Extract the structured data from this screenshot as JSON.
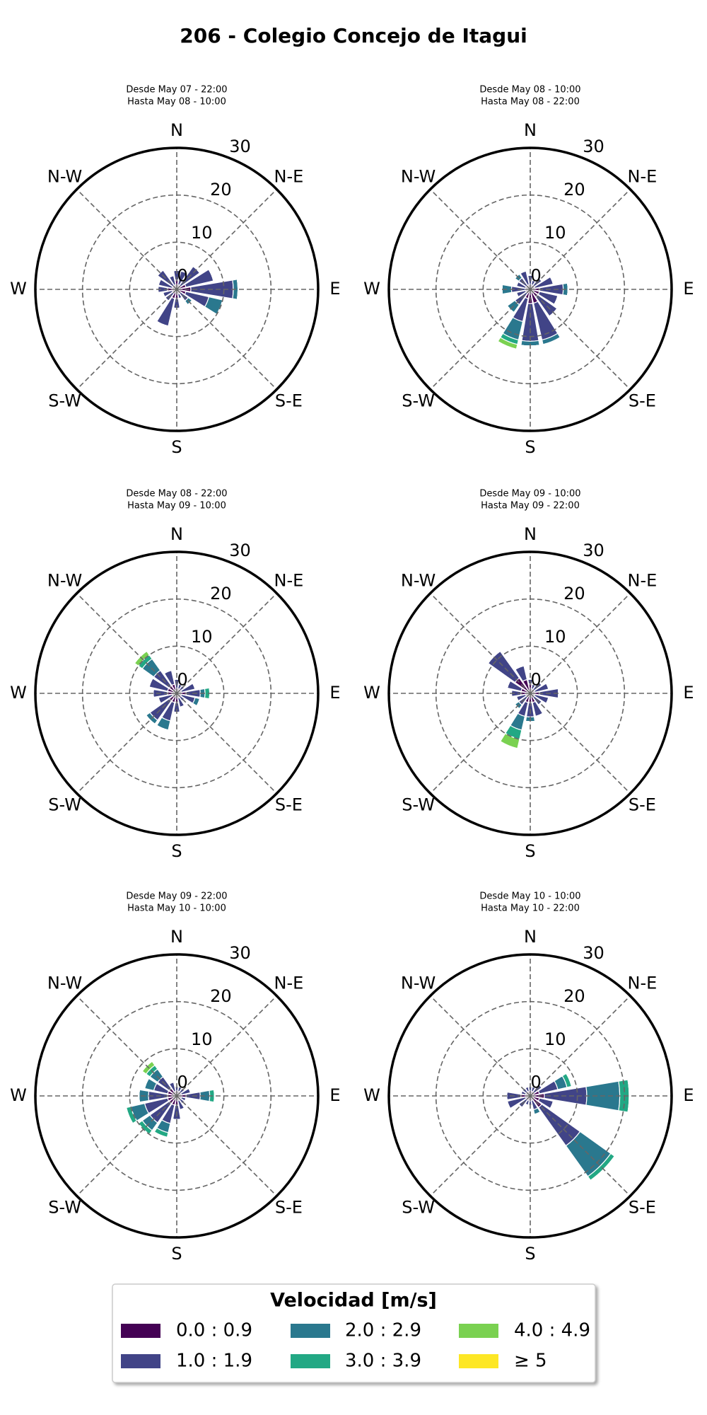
{
  "title": "206 - Colegio Concejo de Itagui",
  "legend": {
    "title": "Velocidad [m/s]",
    "items": [
      {
        "name": "0.0 : 0.9",
        "color": "#440154"
      },
      {
        "name": "1.0 : 1.9",
        "color": "#414487"
      },
      {
        "name": "2.0 : 2.9",
        "color": "#2a788e"
      },
      {
        "name": "3.0 : 3.9",
        "color": "#22a884"
      },
      {
        "name": "4.0 : 4.9",
        "color": "#7ad151"
      },
      {
        "name": "≥  5",
        "color": "#fde725"
      }
    ]
  },
  "chart_data": [
    {
      "type": "windrose",
      "title": [
        "Desde May 07 - 22:00",
        "Hasta May 08 - 10:00"
      ],
      "x": [
        0,
        22.5,
        45,
        67.5,
        90,
        112.5,
        135,
        157.5,
        180,
        202.5,
        225,
        247.5,
        270,
        292.5,
        315,
        337.5
      ],
      "xticks": [
        {
          "value": 0,
          "label": "N"
        },
        {
          "value": 45,
          "label": "N-E"
        },
        {
          "value": 90,
          "label": "E"
        },
        {
          "value": 135,
          "label": "S-E"
        },
        {
          "value": 180,
          "label": "S"
        },
        {
          "value": 225,
          "label": "S-W"
        },
        {
          "value": 270,
          "label": "W"
        },
        {
          "value": 315,
          "label": "N-W"
        }
      ],
      "ylim": [
        0,
        30
      ],
      "yticks": [
        0,
        10,
        20,
        30
      ],
      "series": [
        {
          "values": [
            2,
            1,
            1,
            2,
            3,
            2,
            1,
            1,
            2,
            2,
            1,
            1,
            2,
            1,
            1,
            1
          ]
        },
        {
          "values": [
            2,
            3,
            5,
            6,
            9,
            5,
            2,
            1,
            2,
            6,
            2,
            2,
            2,
            3,
            4,
            2
          ]
        },
        {
          "values": [
            0,
            0,
            0,
            0,
            1,
            3,
            1,
            0,
            0,
            0,
            0,
            0,
            0,
            0,
            0,
            0
          ]
        },
        {
          "values": [
            0,
            0,
            0,
            0,
            0,
            0,
            0,
            0,
            0,
            0,
            0,
            0,
            0,
            0,
            0,
            0
          ]
        },
        {
          "values": [
            0,
            0,
            0,
            0,
            0,
            0,
            0,
            0,
            0,
            0,
            0,
            0,
            0,
            0,
            0,
            0
          ]
        },
        {
          "values": [
            0,
            0,
            0,
            0,
            0,
            0,
            0,
            0,
            0,
            0,
            0,
            0,
            0,
            0,
            0,
            0
          ]
        }
      ]
    },
    {
      "type": "windrose",
      "title": [
        "Desde May 08 - 10:00",
        "Hasta May 08 - 22:00"
      ],
      "x": [
        0,
        22.5,
        45,
        67.5,
        90,
        112.5,
        135,
        157.5,
        180,
        202.5,
        225,
        247.5,
        270,
        292.5,
        315,
        337.5
      ],
      "xticks": [
        {
          "value": 0,
          "label": "N"
        },
        {
          "value": 45,
          "label": "N-E"
        },
        {
          "value": 90,
          "label": "E"
        },
        {
          "value": 135,
          "label": "S-E"
        },
        {
          "value": 180,
          "label": "S"
        },
        {
          "value": 225,
          "label": "S-W"
        },
        {
          "value": 270,
          "label": "W"
        },
        {
          "value": 315,
          "label": "N-W"
        }
      ],
      "ylim": [
        0,
        30
      ],
      "yticks": [
        0,
        10,
        20,
        30
      ],
      "series": [
        {
          "values": [
            1,
            1,
            1,
            1,
            2,
            2,
            2,
            3,
            3,
            2,
            1,
            1,
            1,
            1,
            1,
            1
          ]
        },
        {
          "values": [
            2,
            1,
            2,
            4,
            5,
            4,
            5,
            8,
            8,
            5,
            3,
            2,
            3,
            2,
            2,
            3
          ]
        },
        {
          "values": [
            0,
            0,
            0,
            0,
            1,
            0,
            0,
            1,
            1,
            4,
            2,
            0,
            2,
            0,
            1,
            0
          ]
        },
        {
          "values": [
            0,
            0,
            0,
            0,
            0,
            0,
            0,
            0,
            0,
            1,
            0,
            0,
            0,
            0,
            0,
            0
          ]
        },
        {
          "values": [
            0,
            0,
            0,
            0,
            0,
            0,
            0,
            0,
            0,
            1,
            0,
            0,
            0,
            0,
            0,
            0
          ]
        },
        {
          "values": [
            0,
            0,
            0,
            0,
            0,
            0,
            0,
            0,
            0,
            0,
            0,
            0,
            0,
            0,
            0,
            0
          ]
        }
      ]
    },
    {
      "type": "windrose",
      "title": [
        "Desde May 08 - 22:00",
        "Hasta May 09 - 10:00"
      ],
      "x": [
        0,
        22.5,
        45,
        67.5,
        90,
        112.5,
        135,
        157.5,
        180,
        202.5,
        225,
        247.5,
        270,
        292.5,
        315,
        337.5
      ],
      "xticks": [
        {
          "value": 0,
          "label": "N"
        },
        {
          "value": 45,
          "label": "N-E"
        },
        {
          "value": 90,
          "label": "E"
        },
        {
          "value": 135,
          "label": "S-E"
        },
        {
          "value": 180,
          "label": "S"
        },
        {
          "value": 225,
          "label": "S-W"
        },
        {
          "value": 270,
          "label": "W"
        },
        {
          "value": 315,
          "label": "N-W"
        }
      ],
      "ylim": [
        0,
        30
      ],
      "yticks": [
        0,
        10,
        20,
        30
      ],
      "series": [
        {
          "values": [
            1,
            1,
            1,
            1,
            2,
            1,
            1,
            1,
            2,
            2,
            2,
            1,
            2,
            2,
            2,
            2
          ]
        },
        {
          "values": [
            2,
            1,
            1,
            3,
            3,
            3,
            1,
            2,
            2,
            4,
            5,
            3,
            3,
            4,
            4,
            3
          ]
        },
        {
          "values": [
            0,
            0,
            0,
            0,
            1,
            1,
            0,
            0,
            0,
            2,
            1,
            0,
            0,
            0,
            3,
            0
          ]
        },
        {
          "values": [
            0,
            0,
            0,
            0,
            1,
            0,
            0,
            0,
            0,
            0,
            0,
            0,
            0,
            0,
            1,
            0
          ]
        },
        {
          "values": [
            0,
            0,
            0,
            0,
            0,
            0,
            0,
            0,
            0,
            0,
            0,
            0,
            0,
            0,
            1,
            0
          ]
        },
        {
          "values": [
            0,
            0,
            0,
            0,
            0,
            0,
            0,
            0,
            0,
            0,
            0,
            0,
            0,
            0,
            0,
            0
          ]
        }
      ]
    },
    {
      "type": "windrose",
      "title": [
        "Desde May 09 - 10:00",
        "Hasta May 09 - 22:00"
      ],
      "x": [
        0,
        22.5,
        45,
        67.5,
        90,
        112.5,
        135,
        157.5,
        180,
        202.5,
        225,
        247.5,
        270,
        292.5,
        315,
        337.5
      ],
      "xticks": [
        {
          "value": 0,
          "label": "N"
        },
        {
          "value": 45,
          "label": "N-E"
        },
        {
          "value": 90,
          "label": "E"
        },
        {
          "value": 135,
          "label": "S-E"
        },
        {
          "value": 180,
          "label": "S"
        },
        {
          "value": 225,
          "label": "S-W"
        },
        {
          "value": 270,
          "label": "W"
        },
        {
          "value": 315,
          "label": "N-W"
        }
      ],
      "ylim": [
        0,
        30
      ],
      "yticks": [
        0,
        10,
        20,
        30
      ],
      "series": [
        {
          "values": [
            2,
            1,
            1,
            1,
            2,
            1,
            1,
            2,
            2,
            2,
            1,
            1,
            2,
            2,
            4,
            3
          ]
        },
        {
          "values": [
            1,
            1,
            2,
            3,
            4,
            3,
            2,
            3,
            3,
            3,
            2,
            2,
            2,
            3,
            7,
            3
          ]
        },
        {
          "values": [
            0,
            0,
            0,
            0,
            0,
            0,
            0,
            0,
            1,
            3,
            1,
            0,
            0,
            0,
            0,
            0
          ]
        },
        {
          "values": [
            0,
            0,
            0,
            0,
            0,
            0,
            0,
            0,
            0,
            2,
            0,
            0,
            0,
            0,
            0,
            0
          ]
        },
        {
          "values": [
            0,
            0,
            0,
            0,
            0,
            0,
            0,
            0,
            0,
            2,
            0,
            0,
            0,
            0,
            0,
            0
          ]
        },
        {
          "values": [
            0,
            0,
            0,
            0,
            0,
            0,
            0,
            0,
            0,
            0,
            0,
            0,
            0,
            0,
            0,
            0
          ]
        }
      ]
    },
    {
      "type": "windrose",
      "title": [
        "Desde May 09 - 22:00",
        "Hasta May 10 - 10:00"
      ],
      "x": [
        0,
        22.5,
        45,
        67.5,
        90,
        112.5,
        135,
        157.5,
        180,
        202.5,
        225,
        247.5,
        270,
        292.5,
        315,
        337.5
      ],
      "xticks": [
        {
          "value": 0,
          "label": "N"
        },
        {
          "value": 45,
          "label": "N-E"
        },
        {
          "value": 90,
          "label": "E"
        },
        {
          "value": 135,
          "label": "S-E"
        },
        {
          "value": 180,
          "label": "S"
        },
        {
          "value": 225,
          "label": "S-W"
        },
        {
          "value": 270,
          "label": "W"
        },
        {
          "value": 315,
          "label": "N-W"
        }
      ],
      "ylim": [
        0,
        30
      ],
      "yticks": [
        0,
        10,
        20,
        30
      ],
      "series": [
        {
          "values": [
            1,
            1,
            1,
            1,
            2,
            1,
            1,
            1,
            2,
            2,
            2,
            2,
            2,
            2,
            2,
            1
          ]
        },
        {
          "values": [
            1,
            1,
            1,
            2,
            3,
            1,
            1,
            2,
            3,
            4,
            5,
            5,
            4,
            3,
            3,
            2
          ]
        },
        {
          "values": [
            0,
            0,
            0,
            0,
            2,
            0,
            0,
            0,
            0,
            2,
            2,
            3,
            2,
            2,
            2,
            0
          ]
        },
        {
          "values": [
            0,
            0,
            0,
            0,
            1,
            0,
            0,
            0,
            0,
            1,
            1,
            1,
            0,
            0,
            1,
            0
          ]
        },
        {
          "values": [
            0,
            0,
            0,
            0,
            0,
            0,
            0,
            0,
            0,
            0,
            0,
            0,
            0,
            0,
            1,
            0
          ]
        },
        {
          "values": [
            0,
            0,
            0,
            0,
            0,
            0,
            0,
            0,
            0,
            0,
            0,
            0,
            0,
            0,
            0,
            0
          ]
        }
      ]
    },
    {
      "type": "windrose",
      "title": [
        "Desde May 10 - 10:00",
        "Hasta May 10 - 22:00"
      ],
      "x": [
        0,
        22.5,
        45,
        67.5,
        90,
        112.5,
        135,
        157.5,
        180,
        202.5,
        225,
        247.5,
        270,
        292.5,
        315,
        337.5
      ],
      "xticks": [
        {
          "value": 0,
          "label": "N"
        },
        {
          "value": 45,
          "label": "N-E"
        },
        {
          "value": 90,
          "label": "E"
        },
        {
          "value": 135,
          "label": "S-E"
        },
        {
          "value": 180,
          "label": "S"
        },
        {
          "value": 225,
          "label": "S-W"
        },
        {
          "value": 270,
          "label": "W"
        },
        {
          "value": 315,
          "label": "N-W"
        }
      ],
      "ylim": [
        0,
        30
      ],
      "yticks": [
        0,
        10,
        20,
        30
      ],
      "series": [
        {
          "values": [
            1,
            1,
            1,
            2,
            3,
            2,
            3,
            1,
            1,
            1,
            1,
            1,
            2,
            1,
            1,
            1
          ]
        },
        {
          "values": [
            1,
            1,
            2,
            4,
            9,
            3,
            10,
            2,
            1,
            1,
            2,
            4,
            3,
            1,
            1,
            1
          ]
        },
        {
          "values": [
            0,
            0,
            0,
            2,
            7,
            0,
            8,
            1,
            0,
            0,
            0,
            0,
            0,
            0,
            0,
            0
          ]
        },
        {
          "values": [
            0,
            0,
            0,
            1,
            2,
            0,
            1,
            0,
            0,
            0,
            0,
            0,
            0,
            0,
            0,
            0
          ]
        },
        {
          "values": [
            0,
            0,
            0,
            0,
            0,
            0,
            0,
            0,
            0,
            0,
            0,
            0,
            0,
            0,
            0,
            0
          ]
        },
        {
          "values": [
            0,
            0,
            0,
            0,
            0,
            0,
            0,
            0,
            0,
            0,
            0,
            0,
            0,
            0,
            0,
            0
          ]
        }
      ]
    }
  ]
}
